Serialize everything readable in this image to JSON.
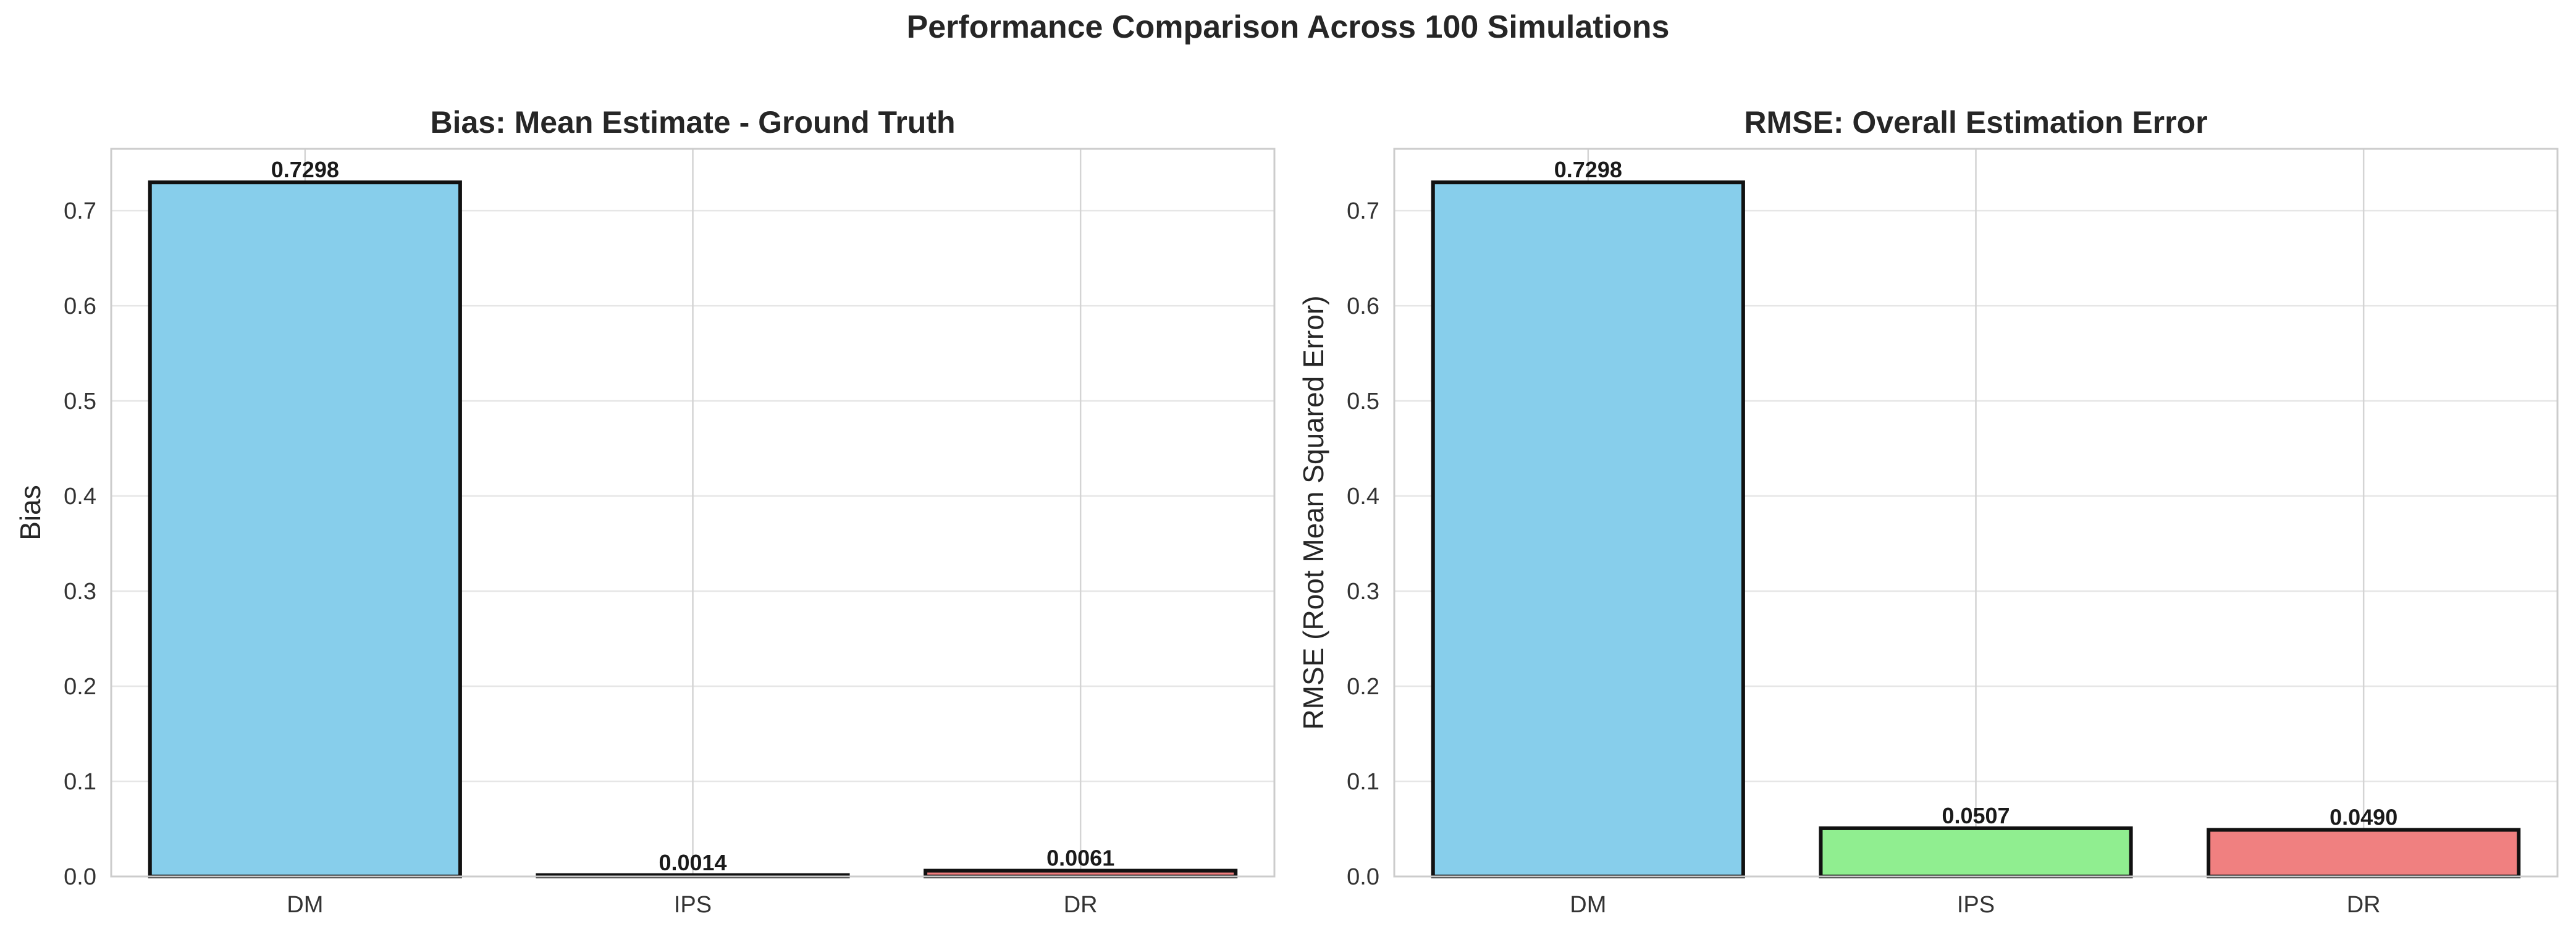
{
  "figure": {
    "title": "Performance Comparison Across 100 Simulations"
  },
  "colors": {
    "DM": "#87CEEB",
    "IPS": "#90EE90",
    "DR": "#F08080",
    "edge": "#111111",
    "grid": "#e6e6e6",
    "reference_line": "#f4a8b0"
  },
  "chart_data": [
    {
      "type": "bar",
      "title": "Bias: Mean Estimate - Ground Truth",
      "xlabel": "",
      "ylabel": "Bias",
      "categories": [
        "DM",
        "IPS",
        "DR"
      ],
      "values": [
        0.7298,
        0.0014,
        0.0061
      ],
      "value_labels": [
        "0.7298",
        "0.0014",
        "0.0061"
      ],
      "ylim": [
        0,
        0.765
      ],
      "yticks": [
        0.0,
        0.1,
        0.2,
        0.3,
        0.4,
        0.5,
        0.6,
        0.7
      ],
      "ytick_labels": [
        "0.0",
        "0.1",
        "0.2",
        "0.3",
        "0.4",
        "0.5",
        "0.6",
        "0.7"
      ],
      "grid": true,
      "reference_line": {
        "y": 0,
        "style": "dashed"
      }
    },
    {
      "type": "bar",
      "title": "RMSE: Overall Estimation Error",
      "xlabel": "",
      "ylabel": "RMSE (Root Mean Squared Error)",
      "categories": [
        "DM",
        "IPS",
        "DR"
      ],
      "values": [
        0.7298,
        0.0507,
        0.049
      ],
      "value_labels": [
        "0.7298",
        "0.0507",
        "0.0490"
      ],
      "ylim": [
        0,
        0.765
      ],
      "yticks": [
        0.0,
        0.1,
        0.2,
        0.3,
        0.4,
        0.5,
        0.6,
        0.7
      ],
      "ytick_labels": [
        "0.0",
        "0.1",
        "0.2",
        "0.3",
        "0.4",
        "0.5",
        "0.6",
        "0.7"
      ],
      "grid": true
    }
  ]
}
